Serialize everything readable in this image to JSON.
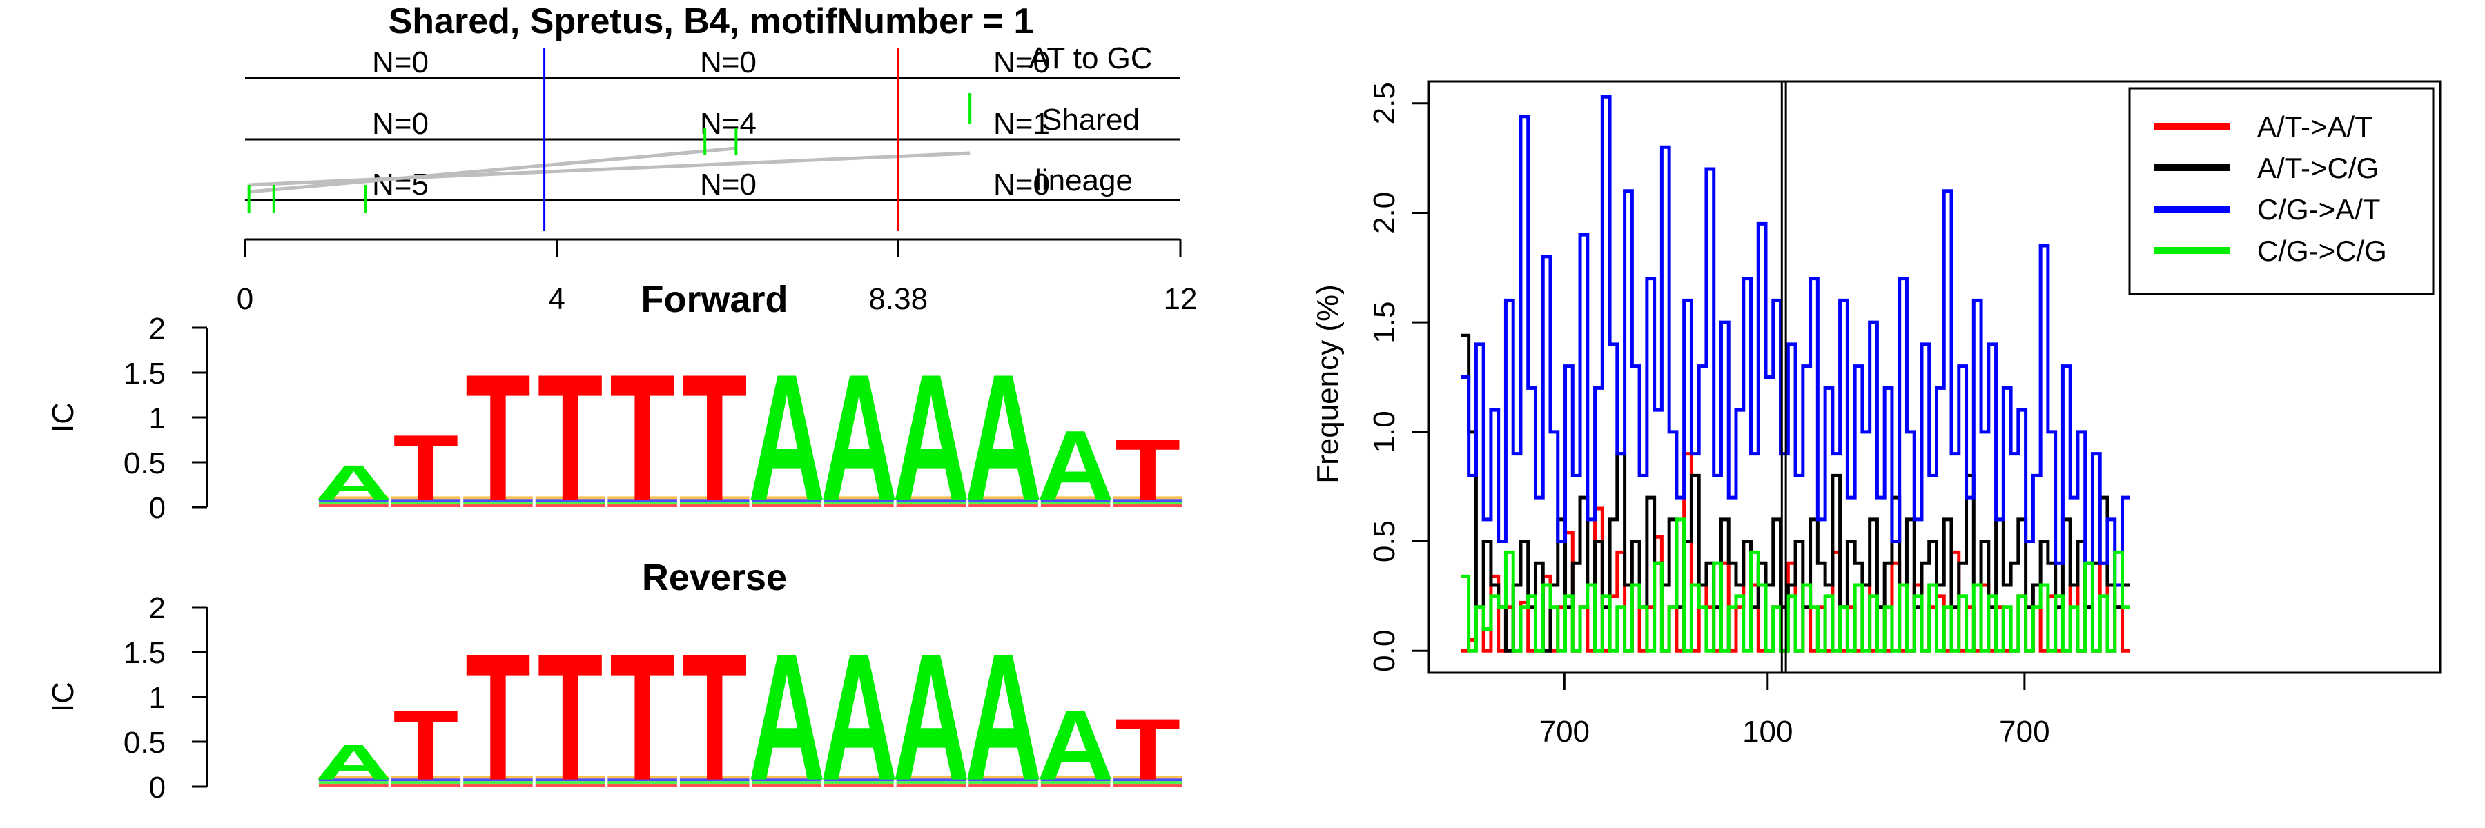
{
  "figure": {
    "title": "Shared, Spretus, B4, motifNumber = 1"
  },
  "chart_data": [
    {
      "type": "other",
      "panel": "motif-position-tracks",
      "tracks": [
        {
          "label": "AT to GC",
          "counts": [
            "N=0",
            "N=0",
            "N=0"
          ]
        },
        {
          "label": "Shared",
          "counts": [
            "N=0",
            "N=4",
            "N=1"
          ]
        },
        {
          "label": "lineage",
          "counts": [
            "N=5",
            "N=0",
            "N=0"
          ]
        }
      ],
      "x_ticks": [
        "0",
        "4",
        "8.38",
        "12"
      ],
      "xlim": [
        0,
        12
      ],
      "markers": [
        {
          "position": 3.84,
          "color": "#0000ff"
        },
        {
          "position": 8.38,
          "color": "#ff0000"
        }
      ],
      "mutation_ticks": [
        0.05,
        0.37,
        1.55,
        5.9,
        6.3,
        9.3
      ],
      "colors": {
        "track_line": "#000000",
        "tick": "#00ee00",
        "link": "#bebebe"
      }
    },
    {
      "type": "other",
      "panel": "sequence-logo",
      "title": "Forward",
      "ylabel": "IC",
      "y_ticks": [
        "0",
        "0.5",
        "1",
        "1.5",
        "2"
      ],
      "ylim": [
        0,
        2
      ],
      "positions": [
        {
          "top": "A",
          "ic": 0.4
        },
        {
          "top": "T",
          "ic": 0.75
        },
        {
          "top": "T",
          "ic": 1.45
        },
        {
          "top": "T",
          "ic": 1.45
        },
        {
          "top": "T",
          "ic": 1.45
        },
        {
          "top": "T",
          "ic": 1.45
        },
        {
          "top": "A",
          "ic": 1.45
        },
        {
          "top": "A",
          "ic": 1.45
        },
        {
          "top": "A",
          "ic": 1.45
        },
        {
          "top": "A",
          "ic": 1.45
        },
        {
          "top": "A",
          "ic": 0.8
        },
        {
          "top": "T",
          "ic": 0.7
        }
      ]
    },
    {
      "type": "other",
      "panel": "sequence-logo",
      "title": "Reverse",
      "ylabel": "IC",
      "y_ticks": [
        "0",
        "0.5",
        "1",
        "1.5",
        "2"
      ],
      "ylim": [
        0,
        2
      ],
      "positions": [
        {
          "top": "A",
          "ic": 0.4
        },
        {
          "top": "T",
          "ic": 0.8
        },
        {
          "top": "T",
          "ic": 1.45
        },
        {
          "top": "T",
          "ic": 1.45
        },
        {
          "top": "T",
          "ic": 1.45
        },
        {
          "top": "T",
          "ic": 1.45
        },
        {
          "top": "A",
          "ic": 1.45
        },
        {
          "top": "A",
          "ic": 1.45
        },
        {
          "top": "A",
          "ic": 1.45
        },
        {
          "top": "A",
          "ic": 1.45
        },
        {
          "top": "A",
          "ic": 0.8
        },
        {
          "top": "T",
          "ic": 0.7
        }
      ]
    },
    {
      "type": "line",
      "panel": "mutation-frequency",
      "ylabel": "Frequency (%)",
      "y_ticks": [
        "0.0",
        "0.5",
        "1.0",
        "1.5",
        "2.0",
        "2.5"
      ],
      "ylim": [
        -0.1,
        2.6
      ],
      "x_tick_labels": [
        "700",
        "100",
        "700"
      ],
      "x_domain": [
        0,
        100
      ],
      "x_tick_positions": [
        13.4,
        33.5,
        58.9
      ],
      "series_span": [
        3.2,
        69.3
      ],
      "center_lines": [
        34.9,
        35.3
      ],
      "legend_position": "top-right",
      "series": [
        {
          "name": "A/T->A/T",
          "color": "#ff0000",
          "values": [
            0.0,
            0.05,
            0.2,
            0.0,
            0.34,
            0.0,
            0.2,
            0.0,
            0.22,
            0.0,
            0.0,
            0.34,
            0.0,
            0.2,
            0.54,
            0.0,
            0.2,
            0.0,
            0.65,
            0.0,
            0.25,
            0.45,
            0.0,
            0.3,
            0.0,
            0.2,
            0.52,
            0.0,
            0.2,
            0.0,
            0.9,
            0.0,
            0.3,
            0.2,
            0.0,
            0.4,
            0.0,
            0.2,
            0.5,
            0.3,
            0.0,
            0.0,
            0.2,
            0.0,
            0.4,
            0.0,
            0.3,
            0.0,
            0.2,
            0.0,
            0.45,
            0.0,
            0.2,
            0.0,
            0.3,
            0.0,
            0.2,
            0.0,
            0.4,
            0.0,
            0.0,
            0.3,
            0.0,
            0.2,
            0.25,
            0.0,
            0.45,
            0.0,
            0.2,
            0.0,
            0.3,
            0.0,
            0.2,
            0.0,
            0.0,
            0.25,
            0.0,
            0.2,
            0.0,
            0.25,
            0.0,
            0.0,
            0.3,
            0.0,
            0.2,
            0.0,
            0.4,
            0.0,
            0.2,
            0.0
          ]
        },
        {
          "name": "A/T->C/G",
          "color": "#000000",
          "values": [
            1.44,
            1.0,
            0.2,
            0.5,
            0.3,
            0.2,
            0.0,
            0.3,
            0.5,
            0.2,
            0.4,
            0.0,
            0.3,
            0.6,
            0.2,
            0.4,
            0.7,
            0.3,
            0.5,
            0.2,
            0.6,
            0.9,
            0.3,
            0.5,
            0.2,
            0.7,
            0.4,
            0.3,
            0.6,
            0.2,
            0.5,
            0.8,
            0.3,
            0.4,
            0.2,
            0.6,
            0.4,
            0.3,
            0.5,
            0.2,
            0.4,
            0.3,
            0.6,
            0.2,
            0.3,
            0.5,
            0.2,
            0.6,
            0.4,
            0.3,
            0.8,
            0.2,
            0.5,
            0.4,
            0.3,
            0.6,
            0.2,
            0.4,
            0.7,
            0.3,
            0.6,
            0.2,
            0.4,
            0.5,
            0.3,
            0.6,
            0.2,
            0.4,
            0.8,
            0.3,
            0.5,
            0.2,
            0.6,
            0.3,
            0.4,
            0.6,
            0.2,
            0.3,
            0.5,
            0.4,
            0.2,
            0.6,
            0.3,
            0.5,
            0.2,
            0.4,
            0.7,
            0.3,
            0.2,
            0.3
          ]
        },
        {
          "name": "C/G->A/T",
          "color": "#0000ff",
          "values": [
            1.25,
            0.8,
            1.4,
            0.6,
            1.1,
            0.5,
            1.6,
            0.9,
            2.44,
            1.2,
            0.7,
            1.8,
            1.0,
            0.5,
            1.3,
            0.8,
            1.9,
            0.6,
            1.2,
            2.53,
            1.4,
            0.9,
            2.1,
            1.3,
            0.8,
            1.7,
            1.1,
            2.3,
            1.0,
            0.7,
            1.6,
            0.9,
            1.3,
            2.2,
            0.8,
            1.5,
            0.7,
            1.1,
            1.7,
            0.9,
            1.95,
            1.25,
            1.6,
            0.9,
            1.4,
            0.8,
            1.3,
            1.7,
            0.6,
            1.2,
            0.9,
            1.6,
            0.7,
            1.3,
            1.0,
            1.5,
            0.7,
            1.2,
            0.5,
            1.7,
            1.0,
            0.6,
            1.4,
            0.8,
            1.2,
            2.1,
            0.9,
            1.3,
            0.7,
            1.6,
            1.0,
            1.4,
            0.6,
            1.2,
            0.9,
            1.1,
            0.5,
            0.8,
            1.85,
            1.0,
            0.4,
            1.3,
            0.7,
            1.0,
            0.4,
            0.9,
            0.4,
            0.6,
            0.3,
            0.7
          ]
        },
        {
          "name": "C/G->C/G",
          "color": "#00ee00",
          "values": [
            0.34,
            0.0,
            0.2,
            0.1,
            0.25,
            0.2,
            0.45,
            0.0,
            0.2,
            0.25,
            0.0,
            0.3,
            0.2,
            0.0,
            0.25,
            0.0,
            0.2,
            0.3,
            0.0,
            0.25,
            0.0,
            0.2,
            0.0,
            0.3,
            0.2,
            0.0,
            0.4,
            0.0,
            0.2,
            0.6,
            0.0,
            0.3,
            0.2,
            0.0,
            0.4,
            0.0,
            0.2,
            0.25,
            0.0,
            0.45,
            0.3,
            0.0,
            0.2,
            0.0,
            0.25,
            0.0,
            0.3,
            0.2,
            0.0,
            0.25,
            0.0,
            0.2,
            0.0,
            0.3,
            0.0,
            0.25,
            0.0,
            0.2,
            0.0,
            0.3,
            0.0,
            0.25,
            0.0,
            0.3,
            0.0,
            0.2,
            0.0,
            0.25,
            0.0,
            0.3,
            0.0,
            0.25,
            0.0,
            0.2,
            0.0,
            0.25,
            0.0,
            0.2,
            0.3,
            0.0,
            0.25,
            0.0,
            0.2,
            0.0,
            0.4,
            0.0,
            0.25,
            0.0,
            0.45,
            0.2
          ]
        }
      ]
    }
  ]
}
